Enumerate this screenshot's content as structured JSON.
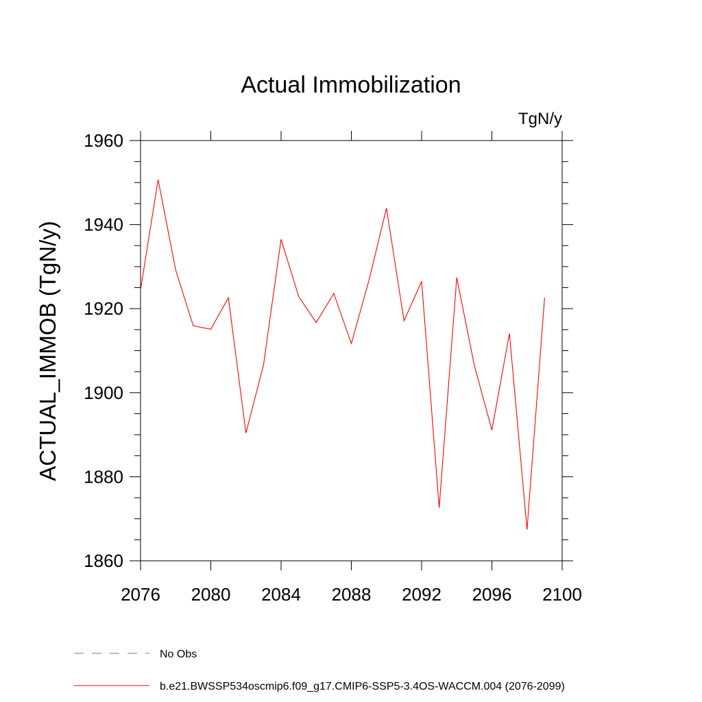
{
  "chart_data": {
    "type": "line",
    "title": "Actual Immobilization",
    "units_label": "TgN/y",
    "xlabel": "",
    "ylabel": "ACTUAL_IMMOB  (TgN/y)",
    "xlim": [
      2076,
      2100
    ],
    "ylim": [
      1860,
      1960
    ],
    "xticks": [
      2076,
      2080,
      2084,
      2088,
      2092,
      2096,
      2100
    ],
    "yticks": [
      1860,
      1880,
      1900,
      1920,
      1940,
      1960
    ],
    "grid": false,
    "x": [
      2076,
      2077,
      2078,
      2079,
      2080,
      2081,
      2082,
      2083,
      2084,
      2085,
      2086,
      2087,
      2088,
      2089,
      2090,
      2091,
      2092,
      2093,
      2094,
      2095,
      2096,
      2097,
      2098,
      2099
    ],
    "series": [
      {
        "name": "b.e21.BWSSP534oscmip6.f09_g17.CMIP6-SSP5-3.4OS-WACCM.004 (2076-2099)",
        "color": "#ff0000",
        "values": [
          1924.5,
          1950.7,
          1929.2,
          1915.9,
          1915.1,
          1922.6,
          1890.4,
          1906.6,
          1936.5,
          1922.9,
          1916.7,
          1923.6,
          1911.7,
          1926.7,
          1943.9,
          1917.1,
          1926.5,
          1872.6,
          1927.4,
          1906.5,
          1891.1,
          1914.1,
          1867.4,
          1922.6
        ]
      }
    ],
    "legend": [
      {
        "label": "No Obs",
        "color": "#7b6fbf",
        "style": "dashed"
      },
      {
        "label": "b.e21.BWSSP534oscmip6.f09_g17.CMIP6-SSP5-3.4OS-WACCM.004 (2076-2099)",
        "color": "#ff0000",
        "style": "solid"
      }
    ],
    "legend_position": "bottom-left"
  }
}
